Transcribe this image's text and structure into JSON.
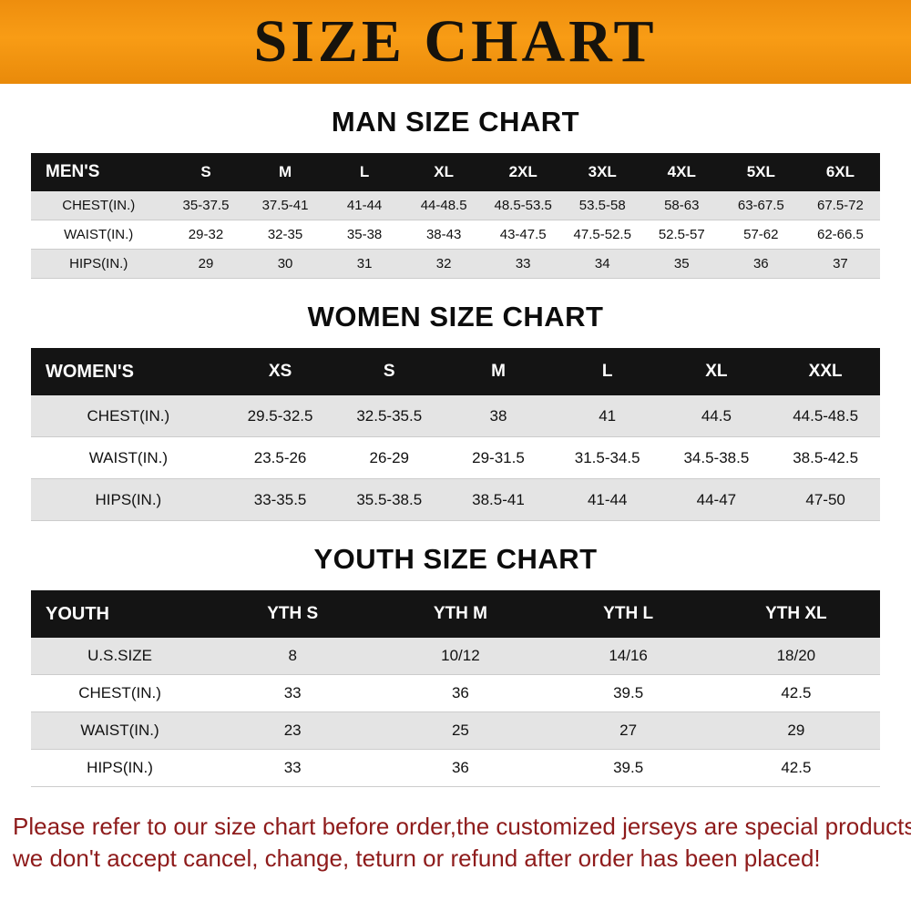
{
  "banner": {
    "title": "SIZE CHART"
  },
  "sections": [
    {
      "heading": "MAN SIZE CHART",
      "table": {
        "header": [
          "MEN'S",
          "S",
          "M",
          "L",
          "XL",
          "2XL",
          "3XL",
          "4XL",
          "5XL",
          "6XL"
        ],
        "rows": [
          [
            "CHEST(IN.)",
            "35-37.5",
            "37.5-41",
            "41-44",
            "44-48.5",
            "48.5-53.5",
            "53.5-58",
            "58-63",
            "63-67.5",
            "67.5-72"
          ],
          [
            "WAIST(IN.)",
            "29-32",
            "32-35",
            "35-38",
            "38-43",
            "43-47.5",
            "47.5-52.5",
            "52.5-57",
            "57-62",
            "62-66.5"
          ],
          [
            "HIPS(IN.)",
            "29",
            "30",
            "31",
            "32",
            "33",
            "34",
            "35",
            "36",
            "37"
          ]
        ]
      }
    },
    {
      "heading": "WOMEN SIZE CHART",
      "table": {
        "header": [
          "WOMEN'S",
          "XS",
          "S",
          "M",
          "L",
          "XL",
          "XXL"
        ],
        "rows": [
          [
            "CHEST(IN.)",
            "29.5-32.5",
            "32.5-35.5",
            "38",
            "41",
            "44.5",
            "44.5-48.5"
          ],
          [
            "WAIST(IN.)",
            "23.5-26",
            "26-29",
            "29-31.5",
            "31.5-34.5",
            "34.5-38.5",
            "38.5-42.5"
          ],
          [
            "HIPS(IN.)",
            "33-35.5",
            "35.5-38.5",
            "38.5-41",
            "41-44",
            "44-47",
            "47-50"
          ]
        ]
      }
    },
    {
      "heading": "YOUTH SIZE CHART",
      "table": {
        "header": [
          "YOUTH",
          "YTH S",
          "YTH M",
          "YTH L",
          "YTH XL"
        ],
        "rows": [
          [
            "U.S.SIZE",
            "8",
            "10/12",
            "14/16",
            "18/20"
          ],
          [
            "CHEST(IN.)",
            "33",
            "36",
            "39.5",
            "42.5"
          ],
          [
            "WAIST(IN.)",
            "23",
            "25",
            "27",
            "29"
          ],
          [
            "HIPS(IN.)",
            "33",
            "36",
            "39.5",
            "42.5"
          ]
        ]
      }
    }
  ],
  "footer": {
    "lines": [
      "Please refer to our size chart before order,the customized jerseys are special products,",
      "we don't accept cancel, change, teturn or refund after order has been placed!"
    ]
  }
}
